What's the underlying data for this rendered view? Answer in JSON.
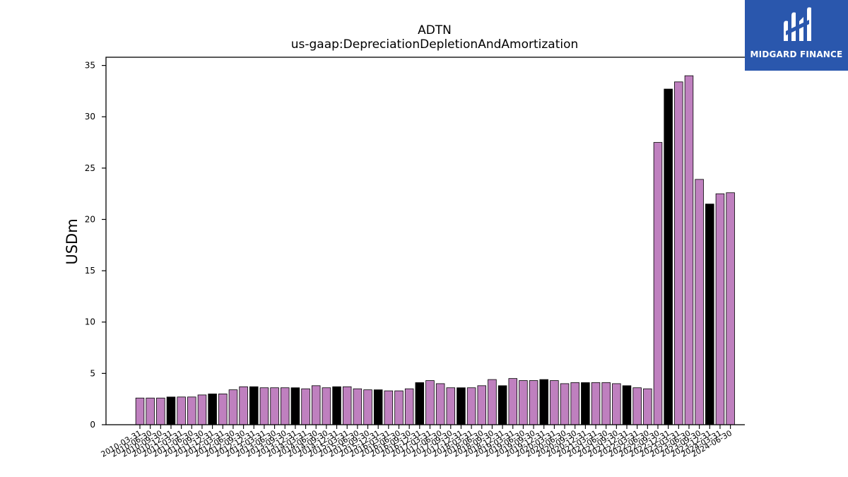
{
  "chart_data": {
    "type": "bar",
    "title": "ADTN",
    "subtitle": "us-gaap:DepreciationDepletionAndAmortization",
    "xlabel": "",
    "ylabel": "USDm",
    "ylim": [
      0,
      35.8
    ],
    "yticks": [
      0,
      5,
      10,
      15,
      20,
      25,
      30,
      35
    ],
    "grid": false,
    "colors": {
      "quarter": "#bf80bf",
      "year_end": "#000000",
      "edge": "#000000"
    },
    "categories": [
      "2010-03-31",
      "2010-06-30",
      "2010-09-30",
      "2010-12-31",
      "2011-03-31",
      "2011-06-30",
      "2011-09-30",
      "2011-12-31",
      "2012-03-31",
      "2012-06-30",
      "2012-09-30",
      "2012-12-31",
      "2013-03-31",
      "2013-06-30",
      "2013-09-30",
      "2013-12-31",
      "2014-03-31",
      "2014-06-30",
      "2014-09-30",
      "2014-12-31",
      "2015-03-31",
      "2015-06-30",
      "2015-09-30",
      "2015-12-31",
      "2016-03-31",
      "2016-06-30",
      "2016-09-30",
      "2016-12-31",
      "2017-03-31",
      "2017-06-30",
      "2017-09-30",
      "2017-12-31",
      "2018-03-31",
      "2018-06-30",
      "2018-09-30",
      "2018-12-31",
      "2019-03-31",
      "2019-06-30",
      "2019-09-30",
      "2019-12-31",
      "2020-03-31",
      "2020-06-30",
      "2020-09-30",
      "2020-12-31",
      "2021-03-31",
      "2021-06-30",
      "2021-09-30",
      "2021-12-31",
      "2022-03-31",
      "2022-06-30",
      "2022-09-30",
      "2022-12-31",
      "2023-03-31",
      "2023-06-30",
      "2023-09-30",
      "2023-12-31",
      "2024-03-31",
      "2024-06-30"
    ],
    "values": [
      2.6,
      2.6,
      2.6,
      2.7,
      2.7,
      2.7,
      2.9,
      3.0,
      3.0,
      3.4,
      3.7,
      3.7,
      3.6,
      3.6,
      3.6,
      3.6,
      3.5,
      3.8,
      3.6,
      3.7,
      3.7,
      3.5,
      3.4,
      3.4,
      3.3,
      3.3,
      3.5,
      4.1,
      4.3,
      4.0,
      3.6,
      3.6,
      3.6,
      3.8,
      4.4,
      3.8,
      4.5,
      4.3,
      4.3,
      4.4,
      4.3,
      4.0,
      4.1,
      4.1,
      4.1,
      4.1,
      4.0,
      3.8,
      3.6,
      3.5,
      27.5,
      32.7,
      33.4,
      34.0,
      23.9,
      21.5,
      22.5,
      22.6
    ],
    "year_end_flags": [
      false,
      false,
      false,
      true,
      false,
      false,
      false,
      true,
      false,
      false,
      false,
      true,
      false,
      false,
      false,
      true,
      false,
      false,
      false,
      true,
      false,
      false,
      false,
      true,
      false,
      false,
      false,
      true,
      false,
      false,
      false,
      true,
      false,
      false,
      false,
      true,
      false,
      false,
      false,
      true,
      false,
      false,
      false,
      true,
      false,
      false,
      false,
      true,
      false,
      false,
      false,
      true,
      false,
      false,
      false,
      true,
      false,
      false
    ]
  },
  "logo": {
    "text": "MIDGARD FINANCE"
  }
}
